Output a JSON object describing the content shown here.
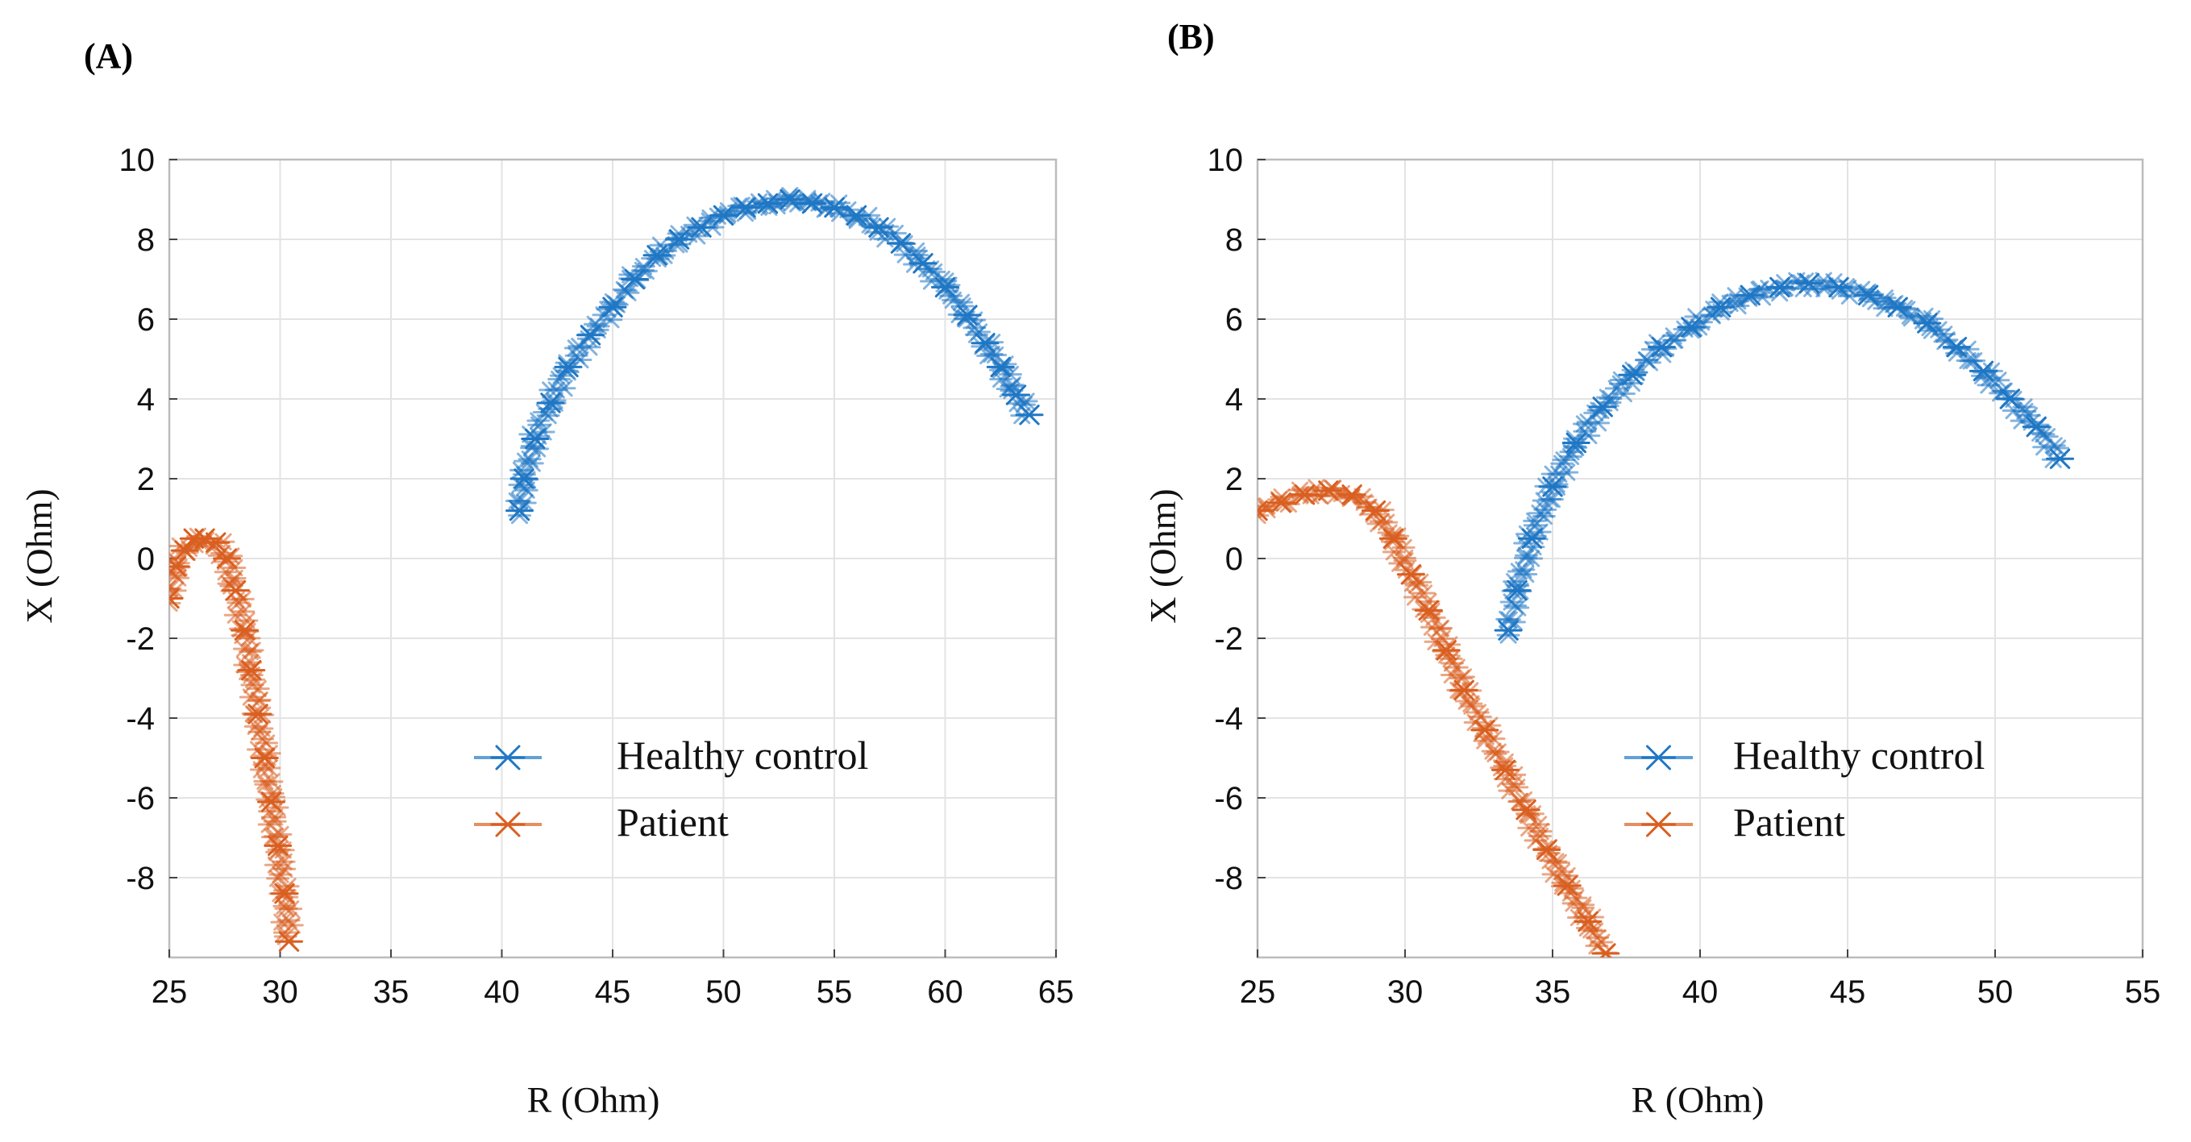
{
  "chart_data": [
    {
      "panel": "(A)",
      "type": "scatter",
      "xlabel": "R (Ohm)",
      "ylabel": "X (Ohm)",
      "xlim": [
        25,
        65
      ],
      "ylim": [
        -10,
        10
      ],
      "xticks": [
        25,
        30,
        35,
        40,
        45,
        50,
        55,
        60,
        65
      ],
      "yticks": [
        -8,
        -6,
        -4,
        -2,
        0,
        2,
        4,
        6,
        8,
        10
      ],
      "legend": [
        "Healthy control",
        "Patient"
      ],
      "series": [
        {
          "name": "Healthy control",
          "color": "#1f77c4",
          "marker": "asterisk",
          "x": [
            40.8,
            41.0,
            41.5,
            42.2,
            43.0,
            44.0,
            45.0,
            46.0,
            47.0,
            48.0,
            49.0,
            50.0,
            51.0,
            52.0,
            53.0,
            54.0,
            55.0,
            56.0,
            57.0,
            58.0,
            59.0,
            60.0,
            61.0,
            61.8,
            62.5,
            63.2,
            63.8
          ],
          "y": [
            1.2,
            2.0,
            3.0,
            3.9,
            4.8,
            5.6,
            6.3,
            7.0,
            7.6,
            8.0,
            8.3,
            8.6,
            8.8,
            8.9,
            9.0,
            8.9,
            8.8,
            8.6,
            8.3,
            7.9,
            7.4,
            6.8,
            6.1,
            5.4,
            4.8,
            4.1,
            3.6
          ]
        },
        {
          "name": "Patient",
          "color": "#d95f20",
          "marker": "asterisk",
          "x": [
            25.0,
            25.3,
            25.7,
            26.1,
            26.6,
            27.1,
            27.6,
            28.0,
            28.4,
            28.7,
            29.0,
            29.3,
            29.6,
            29.9,
            30.2,
            30.4
          ],
          "y": [
            -1.0,
            -0.2,
            0.2,
            0.5,
            0.5,
            0.4,
            0.0,
            -0.8,
            -1.8,
            -2.8,
            -3.9,
            -5.0,
            -6.1,
            -7.2,
            -8.4,
            -9.6
          ]
        }
      ]
    },
    {
      "panel": "(B)",
      "type": "scatter",
      "xlabel": "R (Ohm)",
      "ylabel": "X (Ohm)",
      "xlim": [
        25,
        55
      ],
      "ylim": [
        -10,
        10
      ],
      "xticks": [
        25,
        30,
        35,
        40,
        45,
        50,
        55
      ],
      "yticks": [
        -8,
        -6,
        -4,
        -2,
        0,
        2,
        4,
        6,
        8,
        10
      ],
      "legend": [
        "Healthy control",
        "Patient"
      ],
      "series": [
        {
          "name": "Healthy control",
          "color": "#1f77c4",
          "marker": "asterisk",
          "x": [
            33.5,
            33.8,
            34.3,
            35.0,
            35.8,
            36.7,
            37.7,
            38.7,
            39.7,
            40.7,
            41.7,
            42.7,
            43.7,
            44.7,
            45.7,
            46.7,
            47.7,
            48.7,
            49.6,
            50.5,
            51.4,
            52.2
          ],
          "y": [
            -1.8,
            -0.8,
            0.5,
            1.8,
            2.9,
            3.8,
            4.6,
            5.3,
            5.8,
            6.3,
            6.6,
            6.8,
            6.9,
            6.8,
            6.6,
            6.3,
            5.9,
            5.3,
            4.7,
            4.0,
            3.3,
            2.5
          ]
        },
        {
          "name": "Patient",
          "color": "#d95f20",
          "marker": "asterisk",
          "x": [
            25.0,
            25.8,
            26.6,
            27.4,
            28.2,
            29.0,
            29.6,
            30.2,
            30.8,
            31.4,
            32.0,
            32.7,
            33.4,
            34.1,
            34.8,
            35.5,
            36.2,
            36.8
          ],
          "y": [
            1.2,
            1.4,
            1.6,
            1.7,
            1.6,
            1.2,
            0.5,
            -0.4,
            -1.3,
            -2.3,
            -3.3,
            -4.3,
            -5.3,
            -6.3,
            -7.3,
            -8.2,
            -9.1,
            -9.9
          ]
        }
      ]
    }
  ]
}
